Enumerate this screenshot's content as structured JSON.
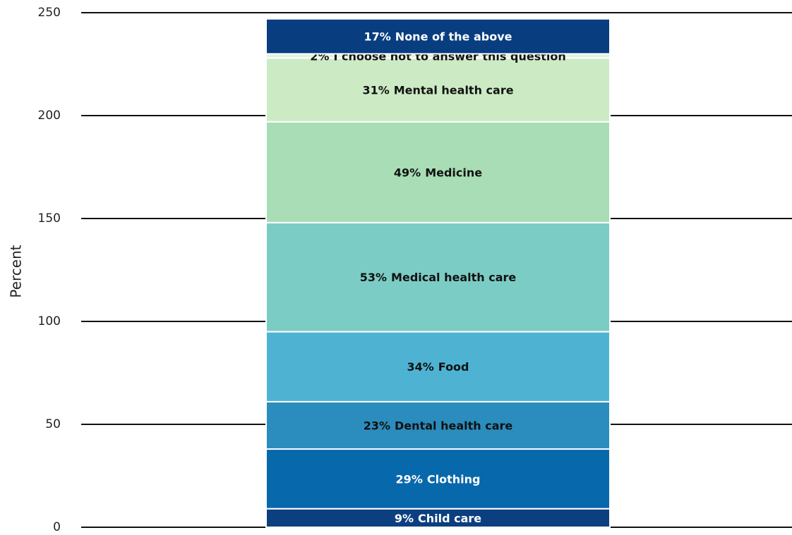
{
  "chart_data": {
    "type": "stacked_bar",
    "y_label": "Percent",
    "ylim": [
      0,
      250
    ],
    "yticks": [
      0,
      50,
      100,
      150,
      200,
      250
    ],
    "grid": true,
    "series": [
      {
        "name": "Child care",
        "color": "#0b3f80",
        "label_color": "#ffffff",
        "values": [
          9
        ],
        "value_labels": [
          "9%"
        ]
      },
      {
        "name": "Clothing",
        "color": "#0868ac",
        "label_color": "#ffffff",
        "values": [
          29
        ],
        "value_labels": [
          "29%"
        ]
      },
      {
        "name": "Dental health care",
        "color": "#2b8cbe",
        "label_color": "#111111",
        "values": [
          23
        ],
        "value_labels": [
          "23%"
        ]
      },
      {
        "name": "Food",
        "color": "#4eb3d3",
        "label_color": "#111111",
        "values": [
          34
        ],
        "value_labels": [
          "34%"
        ]
      },
      {
        "name": "Medical health care",
        "color": "#7bccc4",
        "label_color": "#111111",
        "values": [
          53
        ],
        "value_labels": [
          "53%"
        ]
      },
      {
        "name": "Medicine",
        "color": "#a8ddb5",
        "label_color": "#111111",
        "values": [
          49
        ],
        "value_labels": [
          "49%"
        ]
      },
      {
        "name": "Mental health care",
        "color": "#ccebc5",
        "label_color": "#111111",
        "values": [
          31
        ],
        "value_labels": [
          "31%"
        ]
      },
      {
        "name": "I choose not to answer this question",
        "color": "#e0f3db",
        "label_color": "#111111",
        "values": [
          2
        ],
        "value_labels": [
          "2%"
        ]
      },
      {
        "name": "None of the above",
        "color": "#083d80",
        "label_color": "#ffffff",
        "values": [
          17
        ],
        "value_labels": [
          "17%"
        ]
      }
    ]
  }
}
